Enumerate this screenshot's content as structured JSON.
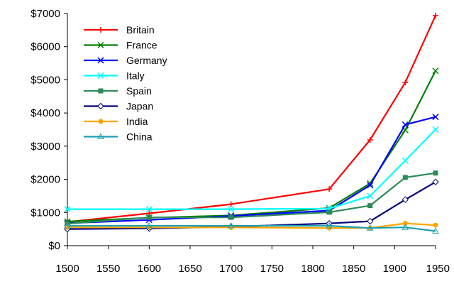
{
  "chart_data": {
    "type": "line",
    "title": "",
    "xlabel": "",
    "ylabel": "",
    "xlim": [
      1500,
      1950
    ],
    "ylim": [
      0,
      7000
    ],
    "x_ticks": [
      1500,
      1550,
      1600,
      1650,
      1700,
      1750,
      1800,
      1850,
      1900,
      1950
    ],
    "x_tick_labels": [
      "1500",
      "1550",
      "1600",
      "1650",
      "1700",
      "1750",
      "1800",
      "1850",
      "1900",
      "1950"
    ],
    "y_ticks": [
      0,
      1000,
      2000,
      3000,
      4000,
      5000,
      6000,
      7000
    ],
    "y_tick_labels": [
      "$0",
      "$1000",
      "$2000",
      "$3000",
      "$4000",
      "$5000",
      "$6000",
      "$7000"
    ],
    "grid": false,
    "legend_position": "top-left",
    "series": [
      {
        "name": "Britain",
        "color": "#ff0000",
        "marker": "plus",
        "x": [
          1500,
          1600,
          1700,
          1820,
          1870,
          1913,
          1950
        ],
        "y": [
          714,
          974,
          1250,
          1706,
          3190,
          4921,
          6939
        ]
      },
      {
        "name": "France",
        "color": "#008000",
        "marker": "x",
        "x": [
          1500,
          1600,
          1700,
          1820,
          1870,
          1913,
          1950
        ],
        "y": [
          727,
          841,
          910,
          1135,
          1876,
          3485,
          5271
        ]
      },
      {
        "name": "Germany",
        "color": "#0000ff",
        "marker": "x",
        "x": [
          1500,
          1600,
          1700,
          1820,
          1870,
          1913,
          1950
        ],
        "y": [
          676,
          777,
          894,
          1058,
          1821,
          3648,
          3881
        ]
      },
      {
        "name": "Italy",
        "color": "#00ffff",
        "marker": "x",
        "x": [
          1500,
          1600,
          1700,
          1820,
          1870,
          1913,
          1950
        ],
        "y": [
          1100,
          1100,
          1100,
          1117,
          1499,
          2564,
          3502
        ]
      },
      {
        "name": "Spain",
        "color": "#2e8b57",
        "marker": "square",
        "x": [
          1500,
          1600,
          1700,
          1820,
          1870,
          1913,
          1950
        ],
        "y": [
          661,
          853,
          853,
          1008,
          1207,
          2056,
          2189
        ]
      },
      {
        "name": "Japan",
        "color": "#000080",
        "marker": "diamond",
        "x": [
          1500,
          1600,
          1700,
          1820,
          1870,
          1913,
          1950
        ],
        "y": [
          500,
          520,
          570,
          669,
          737,
          1387,
          1921
        ]
      },
      {
        "name": "India",
        "color": "#ffa500",
        "marker": "circle",
        "x": [
          1500,
          1600,
          1700,
          1820,
          1870,
          1913,
          1950
        ],
        "y": [
          550,
          550,
          550,
          533,
          533,
          673,
          619
        ]
      },
      {
        "name": "China",
        "color": "#20a0b0",
        "marker": "triangle",
        "x": [
          1500,
          1600,
          1700,
          1820,
          1870,
          1913,
          1950
        ],
        "y": [
          600,
          600,
          600,
          600,
          530,
          552,
          439
        ]
      }
    ]
  }
}
